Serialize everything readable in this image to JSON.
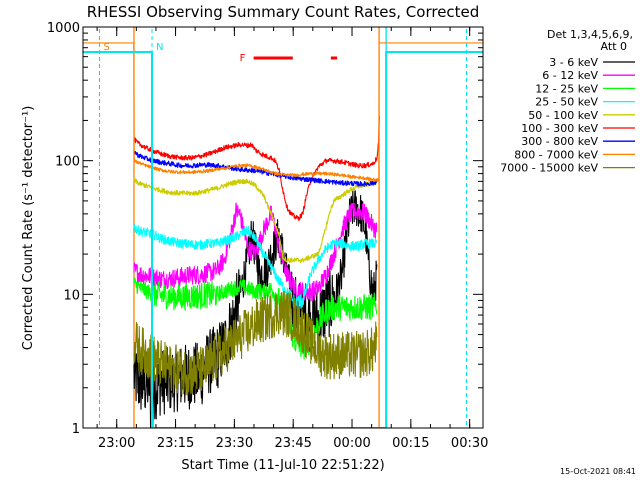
{
  "chart_data": {
    "type": "line",
    "title": "RHESSI Observing Summary Count Rates, Corrected",
    "xlabel": "Start Time (11-Jul-10 22:51:22)",
    "ylabel": "Corrected Count Rate (s⁻¹ detector⁻¹)",
    "yscale": "log",
    "ylim": [
      1,
      1000
    ],
    "xlim_minutes_from_start": [
      0,
      102
    ],
    "x_ticks": [
      {
        "label": "23:00",
        "t": 8.6
      },
      {
        "label": "23:15",
        "t": 23.6
      },
      {
        "label": "23:30",
        "t": 38.6
      },
      {
        "label": "23:45",
        "t": 53.6
      },
      {
        "label": "00:00",
        "t": 68.6
      },
      {
        "label": "00:15",
        "t": 83.6
      },
      {
        "label": "00:30",
        "t": 98.6
      }
    ],
    "y_ticks": [
      {
        "label": "1",
        "v": 1
      },
      {
        "label": "10",
        "v": 10
      },
      {
        "label": "100",
        "v": 100
      },
      {
        "label": "1000",
        "v": 1000
      }
    ],
    "legend_header": [
      "Det 1,3,4,5,6,9,",
      "Att 0"
    ],
    "legend_position": "right",
    "grid": false,
    "timestamp": "15-Oct-2021 08:41",
    "orbit_markers": [
      {
        "type": "S",
        "label": "S",
        "color": "#ff8000",
        "t": 4.2
      },
      {
        "type": "N",
        "label": "N",
        "color": "#00e5ee",
        "t": 17.6
      },
      {
        "type": "N",
        "label": "",
        "color": "#00e5ee",
        "t": 97.8
      }
    ],
    "flare_flag": {
      "label": "F",
      "color": "#ff0000",
      "intervals": [
        [
          43.5,
          53.5
        ],
        [
          63.2,
          64.8
        ]
      ]
    },
    "day_boundaries": [
      {
        "color": "#ff8000",
        "t": 13.0
      },
      {
        "color": "#ff8000",
        "t": 75.5
      },
      {
        "color": "#00e5ee",
        "t": 77.3
      }
    ],
    "series": [
      {
        "name": "3 - 6 keV",
        "color": "#000000",
        "noise": 0.25,
        "t": [
          13,
          14,
          16,
          17,
          17.5,
          18,
          20,
          25,
          30,
          32,
          34,
          36,
          38,
          40,
          42,
          43,
          44,
          45,
          47,
          48,
          50,
          52,
          54,
          56,
          58,
          60,
          62,
          64,
          66,
          67,
          68,
          69,
          70,
          71,
          72,
          73,
          74,
          75
        ],
        "v": [
          2.5,
          2.2,
          2.1,
          2.2,
          0.8,
          2.0,
          2.2,
          2.4,
          2.5,
          3.1,
          3.3,
          4.1,
          6.0,
          10,
          18,
          28,
          21,
          14,
          16,
          20,
          28,
          14,
          8.0,
          7.0,
          6.5,
          6.5,
          8.0,
          9.0,
          14,
          24,
          38,
          45,
          44,
          40,
          30,
          15,
          10,
          14
        ]
      },
      {
        "name": "6 - 12 keV",
        "color": "#ff00ff",
        "noise": 0.12,
        "t": [
          13,
          15,
          18,
          20,
          22,
          25,
          28,
          30,
          32,
          34,
          36,
          38,
          39,
          40,
          41,
          42,
          44,
          46,
          48,
          49,
          50,
          52,
          54,
          56,
          58,
          60,
          62,
          64,
          66,
          68,
          70,
          72,
          74,
          75
        ],
        "v": [
          15,
          14,
          13.5,
          13,
          13,
          13.5,
          14,
          14,
          14.5,
          15,
          18,
          30,
          42,
          40,
          30,
          22,
          20,
          30,
          40,
          32,
          22,
          14,
          11,
          10.5,
          10.5,
          11,
          14,
          20,
          30,
          40,
          42,
          40,
          32,
          30
        ]
      },
      {
        "name": "12 - 25 keV",
        "color": "#00ff00",
        "noise": 0.1,
        "t": [
          13,
          15,
          18,
          20,
          25,
          30,
          34,
          36,
          38,
          40,
          42,
          44,
          46,
          48,
          50,
          52,
          54,
          56,
          58,
          60,
          62,
          64,
          66,
          68,
          70,
          72,
          74,
          75
        ],
        "v": [
          12,
          11,
          10,
          9.8,
          9.5,
          9.8,
          10,
          10.5,
          11,
          11.5,
          11,
          10.5,
          10.5,
          11,
          9.0,
          6.5,
          4.5,
          4.0,
          4.5,
          6.0,
          7.5,
          8.0,
          8.0,
          8.0,
          8.0,
          8.0,
          8.0,
          8.5
        ]
      },
      {
        "name": "25 - 50 keV",
        "color": "#00ffff",
        "noise": 0.06,
        "t": [
          13,
          14,
          16,
          18,
          20,
          22,
          25,
          28,
          30,
          32,
          34,
          36,
          38,
          40,
          42,
          44,
          46,
          48,
          50,
          52,
          54,
          56,
          57,
          58,
          60,
          62,
          64,
          66,
          68,
          70,
          72,
          74,
          75
        ],
        "v": [
          32,
          30,
          29,
          28,
          26,
          25,
          24,
          23.5,
          23.5,
          24,
          24,
          25,
          26,
          28,
          30,
          26,
          20,
          16,
          12.5,
          10.5,
          8.5,
          9.0,
          11,
          14,
          18,
          22,
          24,
          24,
          23,
          23,
          24,
          24,
          24
        ]
      },
      {
        "name": "50 - 100 keV",
        "color": "#cccc00",
        "noise": 0.03,
        "t": [
          13,
          14,
          16,
          18,
          20,
          22,
          25,
          28,
          30,
          32,
          34,
          36,
          38,
          40,
          42,
          44,
          46,
          48,
          50,
          51,
          52,
          54,
          56,
          58,
          60,
          61,
          62,
          63,
          64,
          66,
          68,
          70,
          72,
          74,
          75
        ],
        "v": [
          72,
          68,
          65,
          62,
          60,
          58,
          57,
          57,
          58,
          60,
          62,
          65,
          68,
          70,
          70,
          65,
          55,
          40,
          28,
          19,
          18,
          18,
          18,
          19,
          20,
          25,
          32,
          42,
          50,
          55,
          60,
          64,
          66,
          68,
          70
        ]
      },
      {
        "name": "100 - 300 keV",
        "color": "#ff0000",
        "noise": 0.03,
        "t": [
          13,
          14,
          16,
          18,
          20,
          22,
          25,
          28,
          30,
          32,
          34,
          36,
          38,
          40,
          42,
          43,
          44,
          46,
          48,
          49,
          50,
          51,
          52,
          53,
          54,
          55,
          56,
          57,
          58,
          60,
          62,
          64,
          66,
          68,
          70,
          72,
          74,
          75,
          75.4,
          75.6
        ],
        "v": [
          145,
          135,
          125,
          118,
          112,
          108,
          105,
          105,
          108,
          112,
          118,
          125,
          128,
          132,
          130,
          132,
          120,
          110,
          105,
          100,
          85,
          60,
          45,
          40,
          38,
          37,
          40,
          55,
          70,
          90,
          100,
          100,
          98,
          95,
          92,
          92,
          95,
          105,
          140,
          240
        ]
      },
      {
        "name": "300 - 800 keV",
        "color": "#0000ff",
        "noise": 0.03,
        "t": [
          13,
          14,
          16,
          18,
          20,
          22,
          25,
          28,
          30,
          32,
          34,
          36,
          38,
          40,
          42,
          44,
          46,
          48,
          50,
          52,
          54,
          56,
          58,
          60,
          62,
          64,
          66,
          68,
          70,
          72,
          74,
          75
        ],
        "v": [
          118,
          110,
          104,
          100,
          97,
          95,
          92,
          92,
          93,
          93,
          92,
          90,
          88,
          86,
          85,
          84,
          82,
          80,
          78,
          76,
          74,
          73,
          72,
          71,
          70,
          69,
          68,
          68,
          67,
          67,
          68,
          70
        ]
      },
      {
        "name": "800 - 7000 keV",
        "color": "#ff8000",
        "noise": 0.02,
        "t": [
          0,
          13,
          13,
          14,
          16,
          18,
          20,
          22,
          25,
          28,
          30,
          32,
          34,
          36,
          38,
          40,
          42,
          44,
          46,
          48,
          50,
          52,
          54,
          56,
          58,
          60,
          62,
          64,
          66,
          68,
          70,
          72,
          74,
          75,
          75.5,
          75.5,
          102
        ],
        "v": [
          760,
          760,
          100,
          97,
          92,
          88,
          85,
          83,
          82,
          82,
          83,
          84,
          86,
          88,
          90,
          92,
          92,
          90,
          86,
          82,
          79,
          78,
          78,
          79,
          80,
          80,
          80,
          79,
          78,
          76,
          75,
          74,
          72,
          72,
          72,
          760,
          760
        ]
      },
      {
        "name": "7000 - 15000 keV",
        "color": "#808000",
        "noise": 0.18,
        "t": [
          13,
          14,
          16,
          18,
          20,
          22,
          25,
          28,
          30,
          32,
          34,
          36,
          38,
          40,
          42,
          44,
          46,
          48,
          50,
          52,
          54,
          56,
          58,
          60,
          62,
          64,
          66,
          68,
          70,
          72,
          74,
          75
        ],
        "v": [
          4.5,
          4.0,
          3.6,
          3.3,
          3.0,
          2.8,
          2.7,
          2.6,
          2.7,
          2.9,
          3.3,
          3.8,
          4.3,
          4.8,
          5.3,
          6.0,
          6.5,
          7.0,
          7.5,
          7.2,
          6.5,
          5.5,
          4.5,
          3.8,
          3.5,
          3.5,
          3.5,
          3.5,
          3.5,
          3.6,
          3.8,
          4.5
        ]
      },
      {
        "name": "",
        "color": "#00e5ee",
        "noise": 0,
        "t": [
          0,
          17.6,
          17.6,
          77.3,
          77.3,
          102
        ],
        "v": [
          650,
          650,
          1,
          1,
          650,
          650
        ]
      }
    ]
  }
}
